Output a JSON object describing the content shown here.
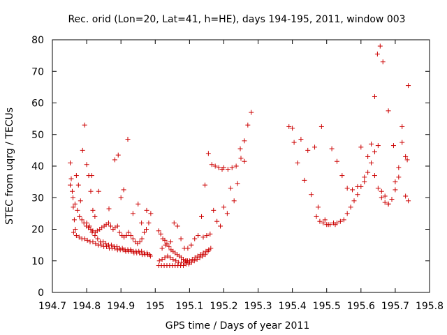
{
  "chart_data": {
    "type": "scatter",
    "title": "Rec. orid (Lon=20, Lat=41, h=HE), days 194-195, 2011, window 003",
    "xlabel": "GPS time / Days of year 2011",
    "ylabel": "STEC from uqrg / TECUs",
    "xlim": [
      194.7,
      195.8
    ],
    "ylim": [
      0,
      80
    ],
    "xticks": [
      "194.7",
      "194.8",
      "194.9",
      "195",
      "195.1",
      "195.2",
      "195.3",
      "195.4",
      "195.5",
      "195.6",
      "195.7",
      "195.8"
    ],
    "yticks": [
      "0",
      "10",
      "20",
      "30",
      "40",
      "50",
      "60",
      "70",
      "80"
    ],
    "grid": false,
    "legend": "none",
    "marker": "plus",
    "color": "#cc0000",
    "series": [
      {
        "x": [
          194.752,
          194.755,
          194.758,
          194.761,
          194.764,
          194.767,
          194.77,
          194.776,
          194.782,
          194.788,
          194.794,
          194.8,
          194.806,
          194.812,
          194.818,
          194.824
        ],
        "y": [
          41,
          36,
          32,
          27,
          23,
          20,
          37,
          34,
          29,
          45,
          53,
          40.5,
          37,
          32,
          26,
          24
        ]
      },
      {
        "x": [
          194.752,
          194.76,
          194.766,
          194.773,
          194.779,
          194.786,
          194.792,
          194.799,
          194.805,
          194.812,
          194.818,
          194.825,
          194.831,
          194.838,
          194.844,
          194.851,
          194.857,
          194.864,
          194.87,
          194.877,
          194.883,
          194.89,
          194.896,
          194.903,
          194.909,
          194.916,
          194.922,
          194.929,
          194.935,
          194.942,
          194.948,
          194.955,
          194.961,
          194.968,
          194.974,
          194.981,
          194.987
        ],
        "y": [
          34,
          30,
          28,
          26,
          24,
          23,
          22,
          21,
          20.5,
          20,
          19.5,
          19,
          19.5,
          20,
          20.5,
          21,
          21.5,
          22,
          21,
          20,
          20.5,
          21,
          19,
          18,
          17.5,
          18,
          19,
          18,
          17,
          16,
          15.5,
          16,
          17,
          19,
          20,
          22,
          25
        ]
      },
      {
        "x": [
          194.762,
          194.77,
          194.778,
          194.786,
          194.794,
          194.802,
          194.81,
          194.818,
          194.826,
          194.834,
          194.842,
          194.85,
          194.858,
          194.866,
          194.874,
          194.882,
          194.89,
          194.898,
          194.906,
          194.914,
          194.922,
          194.93,
          194.938,
          194.946,
          194.954,
          194.962,
          194.97,
          194.978,
          194.986
        ],
        "y": [
          19,
          18,
          17.5,
          17,
          17,
          16.5,
          16,
          16,
          15.5,
          15,
          15,
          14.5,
          14.5,
          14,
          14,
          14,
          13.5,
          13.5,
          13.5,
          13,
          13,
          13,
          12.5,
          12.5,
          12.5,
          12,
          12,
          12,
          11.5
        ]
      },
      {
        "x": [
          194.8,
          194.808,
          194.816,
          194.824,
          194.832,
          194.84,
          194.848,
          194.856,
          194.864,
          194.872,
          194.88,
          194.888,
          194.896,
          194.904,
          194.912,
          194.92,
          194.928,
          194.936,
          194.944,
          194.952,
          194.96,
          194.968,
          194.976,
          194.984
        ],
        "y": [
          22,
          21,
          19,
          18,
          17,
          16,
          16,
          15.5,
          15,
          15,
          14.5,
          14.5,
          14,
          14,
          13.5,
          13.5,
          13.5,
          13,
          13,
          13,
          13,
          12.5,
          12.5,
          12
        ]
      },
      {
        "x": [
          194.815,
          194.835,
          194.865,
          194.882,
          194.892,
          194.9,
          194.908,
          194.92,
          194.935,
          194.95,
          194.96,
          194.975
        ],
        "y": [
          37,
          32,
          26.5,
          42,
          43.5,
          30,
          32.5,
          48.5,
          25,
          28,
          22,
          26
        ]
      },
      {
        "x": [
          195.01,
          195.016,
          195.022,
          195.028,
          195.034,
          195.04,
          195.046,
          195.052,
          195.058,
          195.064,
          195.07,
          195.076,
          195.082,
          195.088,
          195.094,
          195.1
        ],
        "y": [
          19.5,
          18.5,
          17,
          16.5,
          15.5,
          14.5,
          13.5,
          13,
          12.5,
          12,
          11.5,
          11,
          10.5,
          10,
          10,
          9.5
        ]
      },
      {
        "x": [
          195.01,
          195.018,
          195.026,
          195.034,
          195.042,
          195.05,
          195.058,
          195.066,
          195.074,
          195.082,
          195.09,
          195.098,
          195.106,
          195.114,
          195.122,
          195.13,
          195.138,
          195.146,
          195.154,
          195.162
        ],
        "y": [
          8.5,
          8.5,
          8.5,
          8.5,
          8.5,
          8.5,
          8.5,
          8.5,
          8.5,
          8.5,
          9,
          9,
          9.5,
          10,
          10.5,
          11,
          11.5,
          12,
          13,
          14
        ]
      },
      {
        "x": [
          195.012,
          195.02,
          195.028,
          195.036,
          195.044,
          195.052,
          195.06,
          195.068,
          195.076,
          195.084,
          195.092,
          195.1,
          195.108,
          195.116,
          195.124,
          195.132,
          195.14,
          195.148,
          195.156
        ],
        "y": [
          10,
          10.5,
          11,
          11.5,
          11,
          10.5,
          10,
          9.5,
          9.5,
          9.5,
          10,
          10,
          10.5,
          11,
          11.5,
          12,
          12.5,
          13,
          13.5
        ]
      },
      {
        "x": [
          195.02,
          195.03,
          195.045,
          195.055,
          195.065,
          195.075,
          195.085,
          195.095,
          195.105,
          195.115,
          195.125,
          195.135,
          195.145,
          195.155,
          195.165,
          195.175,
          195.185,
          195.195
        ],
        "y": [
          14,
          15,
          16,
          22,
          21,
          17,
          14,
          14,
          15,
          17,
          18,
          24,
          34,
          44,
          40.5,
          40,
          39.5,
          39
        ]
      },
      {
        "x": [
          195.14,
          195.15,
          195.16,
          195.17,
          195.18,
          195.19,
          195.2,
          195.21,
          195.22,
          195.23,
          195.24,
          195.25,
          195.26,
          195.27,
          195.28
        ],
        "y": [
          17.5,
          18,
          18.5,
          26,
          22.5,
          21,
          27,
          25,
          33,
          29,
          34.5,
          42.5,
          48,
          53,
          57
        ]
      },
      {
        "x": [
          195.2,
          195.212,
          195.224,
          195.236,
          195.248,
          195.26
        ],
        "y": [
          39.5,
          39,
          39.5,
          40,
          45.5,
          41.5
        ]
      },
      {
        "x": [
          195.39,
          195.4,
          195.405,
          195.415,
          195.425,
          195.435,
          195.445,
          195.455,
          195.465,
          195.475,
          195.485,
          195.495,
          195.505,
          195.515,
          195.525
        ],
        "y": [
          52.5,
          52,
          47.5,
          41,
          48.5,
          35.5,
          45,
          31,
          46,
          27,
          52.5,
          23,
          21.5,
          45.5,
          21.5
        ]
      },
      {
        "x": [
          195.47,
          195.48,
          195.49,
          195.5,
          195.51,
          195.52,
          195.53,
          195.54,
          195.55,
          195.56,
          195.57,
          195.58,
          195.59,
          195.6,
          195.61,
          195.62,
          195.63,
          195.64,
          195.65,
          195.66,
          195.67,
          195.68,
          195.69,
          195.7
        ],
        "y": [
          24,
          22.5,
          22,
          21.5,
          21.5,
          22,
          22,
          22.5,
          23,
          25,
          27,
          29,
          31,
          33.5,
          35,
          38,
          41,
          44.5,
          46.5,
          32,
          30.5,
          28,
          29.5,
          35
        ]
      },
      {
        "x": [
          195.53,
          195.545,
          195.56,
          195.575,
          195.59,
          195.6,
          195.61,
          195.62,
          195.63,
          195.64,
          195.65,
          195.66,
          195.67,
          195.68
        ],
        "y": [
          41.5,
          37,
          33,
          32.5,
          33.5,
          46,
          36.5,
          43,
          47,
          37,
          33,
          30,
          28.5,
          28
        ]
      },
      {
        "x": [
          195.64,
          195.648,
          195.656,
          195.664,
          195.68,
          195.695,
          195.71,
          195.72,
          195.73,
          195.735,
          195.738
        ],
        "y": [
          62,
          75.5,
          78,
          73,
          57.5,
          46.5,
          39.5,
          52.5,
          30.5,
          42,
          65.5
        ]
      },
      {
        "x": [
          195.7,
          195.71,
          195.72,
          195.73,
          195.738
        ],
        "y": [
          32.5,
          36.5,
          47.5,
          43,
          29
        ]
      }
    ]
  }
}
